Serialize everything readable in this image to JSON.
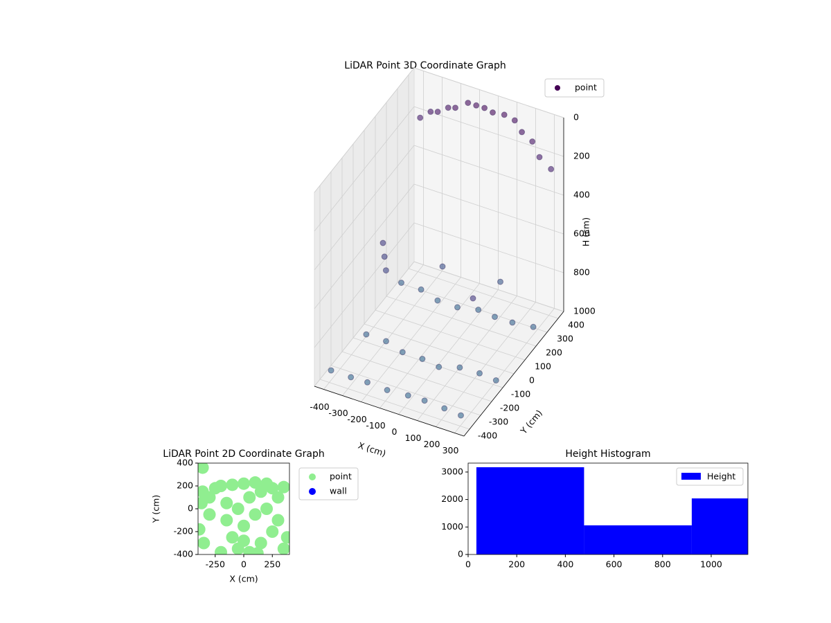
{
  "chart_data": [
    {
      "type": "scatter3d",
      "title": "LiDAR Point 3D Coordinate Graph",
      "xlabel": "X (cm)",
      "ylabel": "Y (cm)",
      "zlabel": "H (cm)",
      "xlim": [
        -450,
        350
      ],
      "ylim": [
        -450,
        450
      ],
      "zlim": [
        1000,
        0
      ],
      "xticks": [
        -400,
        -300,
        -200,
        -100,
        0,
        100,
        200,
        300
      ],
      "yticks": [
        -400,
        -300,
        -200,
        -100,
        0,
        100,
        200,
        300,
        400
      ],
      "zticks": [
        0,
        200,
        400,
        600,
        800,
        1000
      ],
      "colormap": "viridis",
      "clim": [
        0,
        3000
      ],
      "legend": "upper right",
      "series": [
        {
          "name": "point",
          "color": "#440154",
          "x": [
            -400,
            -350,
            -300,
            -250,
            -200,
            -150,
            -100,
            -50,
            0,
            50,
            100,
            150,
            200,
            250,
            300,
            -420,
            -320,
            -220,
            -120,
            -20,
            80,
            180,
            280,
            -380,
            -280,
            -180,
            -80,
            20,
            120,
            220,
            320,
            -400,
            -300,
            -200,
            -100,
            0,
            100,
            200,
            300,
            -350,
            -330,
            -310,
            -150,
            100,
            250
          ],
          "y": [
            420,
            430,
            410,
            420,
            400,
            430,
            420,
            410,
            400,
            420,
            430,
            410,
            420,
            400,
            420,
            -350,
            -340,
            -360,
            -350,
            -330,
            -350,
            -340,
            -360,
            -100,
            -90,
            -110,
            -100,
            -120,
            -100,
            -90,
            -110,
            250,
            260,
            240,
            250,
            270,
            250,
            240,
            260,
            0,
            -20,
            -40,
            200,
            300,
            -200
          ],
          "z": [
            220,
            180,
            150,
            120,
            90,
            70,
            60,
            50,
            50,
            60,
            80,
            110,
            150,
            200,
            260,
            980,
            990,
            970,
            985,
            995,
            975,
            990,
            980,
            960,
            970,
            980,
            990,
            985,
            970,
            975,
            965,
            950,
            960,
            970,
            980,
            975,
            965,
            955,
            960,
            550,
            600,
            650,
            750,
            820,
            500
          ]
        }
      ]
    },
    {
      "type": "scatter",
      "title": "LiDAR Point 2D Coordinate Graph",
      "xlabel": "X (cm)",
      "ylabel": "Y (cm)",
      "xlim": [
        -400,
        400
      ],
      "ylim": [
        -400,
        400
      ],
      "xticks": [
        -250,
        0,
        250
      ],
      "yticks": [
        -400,
        -200,
        0,
        200,
        400
      ],
      "legend": "outside right",
      "series": [
        {
          "name": "point",
          "color": "#90ee90",
          "x": [
            -380,
            -360,
            -390,
            -350,
            -370,
            -360,
            -300,
            -300,
            -250,
            -200,
            -150,
            -150,
            -100,
            -100,
            -50,
            -50,
            0,
            0,
            50,
            50,
            100,
            100,
            150,
            150,
            200,
            200,
            250,
            250,
            300,
            300,
            350,
            350,
            380,
            -200,
            0,
            120
          ],
          "y": [
            380,
            360,
            -180,
            -300,
            50,
            150,
            -50,
            100,
            180,
            200,
            -100,
            50,
            210,
            -250,
            -350,
            0,
            220,
            -150,
            -380,
            100,
            230,
            -50,
            -300,
            150,
            220,
            0,
            -200,
            180,
            100,
            -100,
            190,
            -350,
            -250,
            -380,
            -280,
            -390
          ]
        },
        {
          "name": "wall",
          "color": "#0000ff",
          "x": [],
          "y": []
        }
      ]
    },
    {
      "type": "histogram",
      "title": "Height Histogram",
      "xlim": [
        0,
        1151
      ],
      "ylim": [
        0,
        3325
      ],
      "xticks": [
        0,
        200,
        400,
        600,
        800,
        1000
      ],
      "yticks": [
        0,
        1000,
        2000,
        3000
      ],
      "legend": "upper right",
      "bins": [
        34,
        477,
        920,
        1363
      ],
      "series": [
        {
          "name": "Height",
          "color": "#0000ff",
          "values": [
            3175,
            1060,
            2040
          ]
        }
      ]
    }
  ]
}
